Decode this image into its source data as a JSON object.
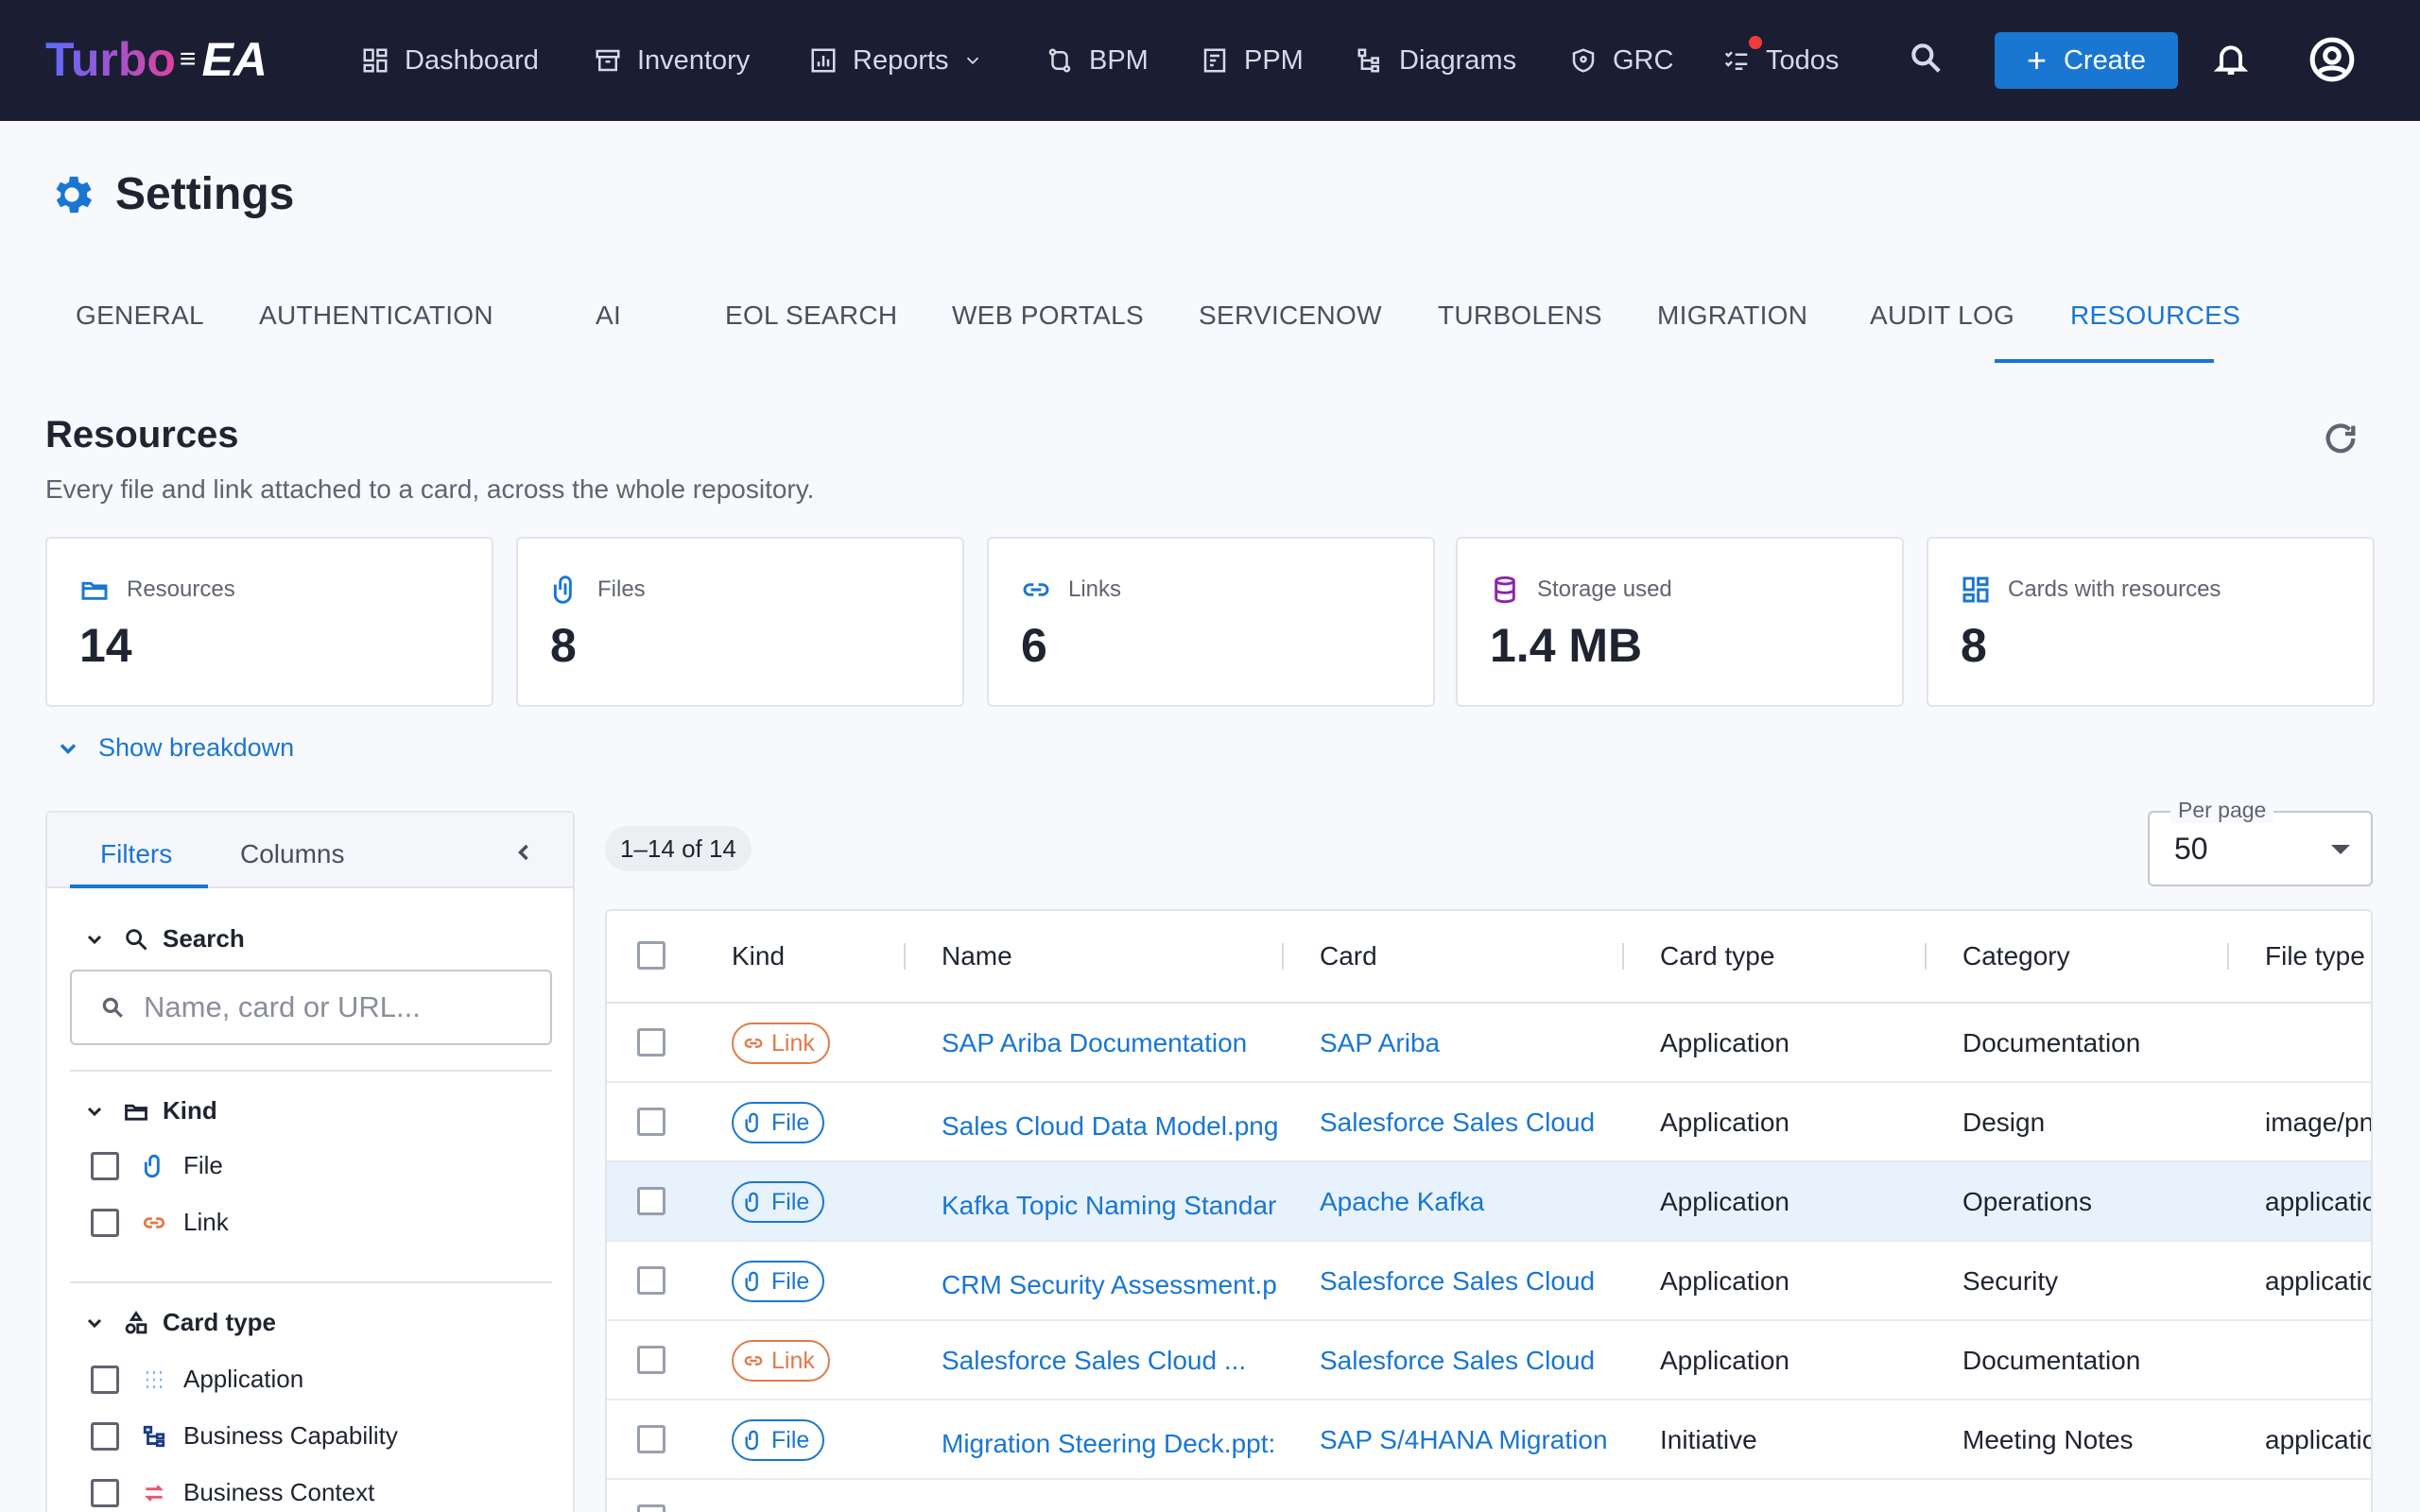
{
  "app": {
    "logo_turbo": "Turbo",
    "logo_ea": "EA"
  },
  "nav": {
    "items": [
      {
        "label": "Dashboard",
        "icon": "dashboard-icon"
      },
      {
        "label": "Inventory",
        "icon": "inventory-icon"
      },
      {
        "label": "Reports",
        "icon": "reports-icon"
      },
      {
        "label": "BPM",
        "icon": "bpm-icon"
      },
      {
        "label": "PPM",
        "icon": "ppm-icon"
      },
      {
        "label": "Diagrams",
        "icon": "diagrams-icon"
      },
      {
        "label": "GRC",
        "icon": "grc-icon"
      },
      {
        "label": "Todos",
        "icon": "todos-icon"
      }
    ],
    "create_label": "Create"
  },
  "page": {
    "title": "Settings"
  },
  "tabs": [
    {
      "label": "GENERAL"
    },
    {
      "label": "AUTHENTICATION"
    },
    {
      "label": "AI"
    },
    {
      "label": "EOL SEARCH"
    },
    {
      "label": "WEB PORTALS"
    },
    {
      "label": "SERVICENOW"
    },
    {
      "label": "TURBOLENS"
    },
    {
      "label": "MIGRATION"
    },
    {
      "label": "AUDIT LOG"
    },
    {
      "label": "RESOURCES"
    }
  ],
  "section": {
    "title": "Resources",
    "subtitle": "Every file and link attached to a card, across the whole repository."
  },
  "stats": [
    {
      "label": "Resources",
      "value": "14",
      "icon": "folder-icon",
      "color": "#1976d2"
    },
    {
      "label": "Files",
      "value": "8",
      "icon": "paperclip-icon",
      "color": "#1976d2"
    },
    {
      "label": "Links",
      "value": "6",
      "icon": "link-icon",
      "color": "#1976d2"
    },
    {
      "label": "Storage used",
      "value": "1.4 MB",
      "icon": "database-icon",
      "color": "#8e24aa"
    },
    {
      "label": "Cards with resources",
      "value": "8",
      "icon": "cards-icon",
      "color": "#1976d2"
    }
  ],
  "breakdown_label": "Show breakdown",
  "filters": {
    "tab_filters": "Filters",
    "tab_columns": "Columns",
    "search_title": "Search",
    "search_placeholder": "Name, card or URL...",
    "kind_title": "Kind",
    "kind_options": [
      "File",
      "Link"
    ],
    "cardtype_title": "Card type",
    "cardtype_options": [
      "Application",
      "Business Capability",
      "Business Context"
    ]
  },
  "table": {
    "range": "1–14 of 14",
    "per_page_label": "Per page",
    "per_page_value": "50",
    "columns": [
      "Kind",
      "Name",
      "Card",
      "Card type",
      "Category",
      "File type"
    ],
    "rows": [
      {
        "kind": "Link",
        "name": "SAP Ariba Documentation",
        "card": "SAP Ariba",
        "card_type": "Application",
        "category": "Documentation",
        "file_type": ""
      },
      {
        "kind": "File",
        "name": "Sales Cloud Data Model.png",
        "card": "Salesforce Sales Cloud",
        "card_type": "Application",
        "category": "Design",
        "file_type": "image/pn"
      },
      {
        "kind": "File",
        "name": "Kafka Topic Naming Standar",
        "card": "Apache Kafka",
        "card_type": "Application",
        "category": "Operations",
        "file_type": "applicatio"
      },
      {
        "kind": "File",
        "name": "CRM Security Assessment.p",
        "card": "Salesforce Sales Cloud",
        "card_type": "Application",
        "category": "Security",
        "file_type": "applicatio"
      },
      {
        "kind": "Link",
        "name": "Salesforce Sales Cloud ...",
        "card": "Salesforce Sales Cloud",
        "card_type": "Application",
        "category": "Documentation",
        "file_type": ""
      },
      {
        "kind": "File",
        "name": "Migration Steering Deck.ppt:",
        "card": "SAP S/4HANA Migration",
        "card_type": "Initiative",
        "category": "Meeting Notes",
        "file_type": "applicatio"
      }
    ]
  }
}
